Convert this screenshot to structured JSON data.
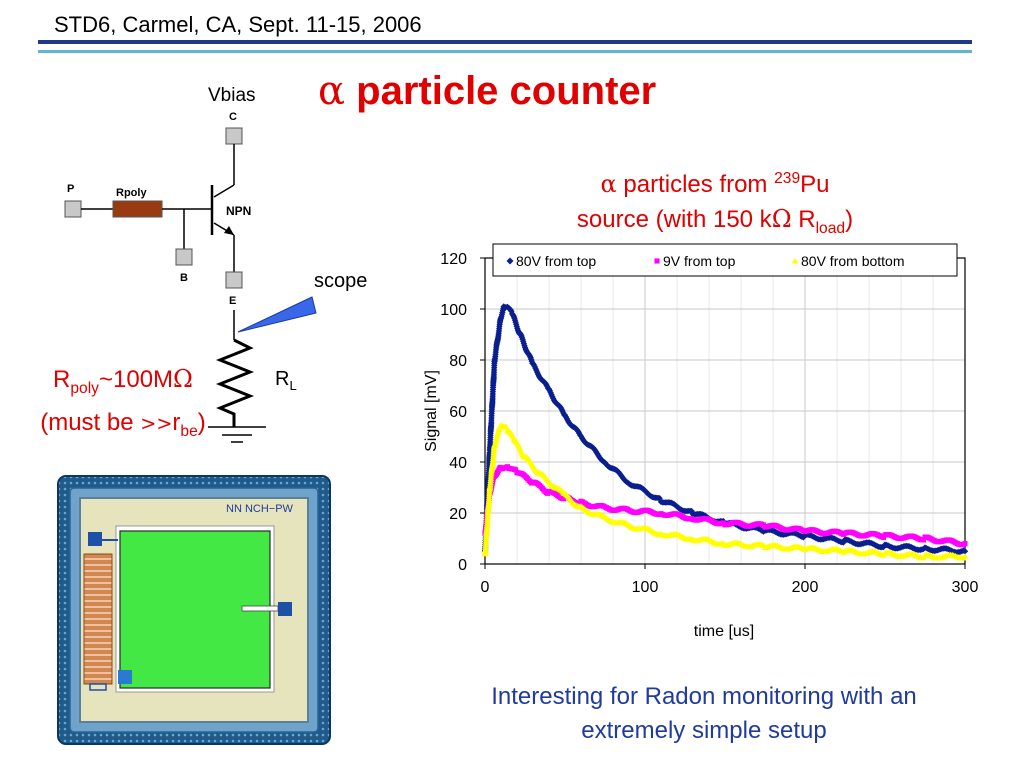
{
  "header": {
    "conference": "STD6, Carmel, CA, Sept. 11-15, 2006",
    "title_symbol": "α",
    "title_text": "particle counter"
  },
  "colors": {
    "title_red": "#e00000",
    "header_rule": "#1f3a8a",
    "header_rule_light": "#5fb4d8",
    "conclusion_blue": "#1f3aa0"
  },
  "circuit": {
    "vbias_label": "Vbias",
    "collector_label": "C",
    "base_label": "B",
    "emitter_label": "E",
    "p_label": "P",
    "rpoly_label": "Rpoly",
    "npn_label": "NPN",
    "scope_label": "scope",
    "rl_label": "R",
    "rl_sub": "L"
  },
  "rpoly_note": {
    "r": "R",
    "poly_sub": "poly",
    "value": "~100M",
    "ohm": "Ω",
    "line2_prefix": "(must be ",
    "gg": ">>",
    "r2": "r",
    "be_sub": "be",
    "line2_suffix": ")"
  },
  "chip": {
    "label": "NN NCH−PW"
  },
  "plot_title": {
    "alpha": "α",
    "line1_text": " particles from ",
    "isotope_sup": "239",
    "element": "Pu",
    "line2_prefix": "source (with 150 k",
    "ohm": "Ω",
    "r": " R",
    "load_sub": "load",
    "line2_suffix": ")"
  },
  "chart_data": {
    "type": "scatter",
    "title": "",
    "xlabel": "time [us]",
    "ylabel": "Signal [mV]",
    "xlim": [
      0,
      300
    ],
    "ylim": [
      0,
      120
    ],
    "xticks": [
      0,
      100,
      200,
      300
    ],
    "yticks": [
      0,
      20,
      40,
      60,
      80,
      100,
      120
    ],
    "grid": true,
    "legend_position": "top",
    "series": [
      {
        "name": "80V from top",
        "color": "#0a1f8f",
        "marker": "diamond",
        "x": [
          0,
          3,
          6,
          10,
          12,
          14,
          17,
          22,
          30,
          40,
          50,
          60,
          75,
          90,
          110,
          130,
          150,
          175,
          200,
          225,
          250,
          275,
          300
        ],
        "y": [
          5,
          45,
          80,
          97,
          101,
          101,
          98,
          90,
          78,
          68,
          58,
          50,
          40,
          32,
          25,
          20,
          16,
          13,
          11,
          9,
          7,
          6,
          5
        ]
      },
      {
        "name": "9V from top",
        "color": "#ff00ff",
        "marker": "square",
        "x": [
          0,
          3,
          6,
          10,
          15,
          20,
          30,
          40,
          50,
          60,
          75,
          90,
          110,
          130,
          150,
          175,
          200,
          225,
          250,
          275,
          300
        ],
        "y": [
          12,
          28,
          35,
          38,
          38,
          36,
          32,
          28,
          26,
          24,
          22,
          21,
          20,
          18,
          16,
          15,
          13,
          12,
          11,
          10,
          8
        ]
      },
      {
        "name": "80V from bottom",
        "color": "#ffff00",
        "marker": "triangle",
        "x": [
          0,
          3,
          6,
          10,
          14,
          18,
          25,
          35,
          50,
          60,
          75,
          90,
          110,
          130,
          150,
          175,
          200,
          225,
          250,
          275,
          300
        ],
        "y": [
          4,
          30,
          47,
          55,
          53,
          49,
          42,
          35,
          27,
          22,
          18,
          15,
          12,
          10,
          8,
          7,
          6,
          5,
          4,
          3,
          3
        ]
      }
    ]
  },
  "conclusion": {
    "line1": "Interesting for Radon monitoring with an",
    "line2": "extremely simple setup"
  }
}
